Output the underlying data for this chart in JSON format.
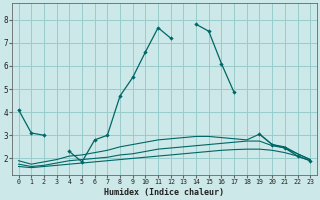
{
  "xlabel": "Humidex (Indice chaleur)",
  "background_color": "#cce8e8",
  "grid_color": "#99cccc",
  "line_color": "#006666",
  "xlim": [
    -0.5,
    23.5
  ],
  "ylim": [
    1.3,
    8.7
  ],
  "xtick_labels": [
    "0",
    "1",
    "2",
    "3",
    "4",
    "5",
    "6",
    "7",
    "8",
    "9",
    "10",
    "11",
    "12",
    "13",
    "14",
    "15",
    "16",
    "17",
    "18",
    "19",
    "20",
    "21",
    "22",
    "23"
  ],
  "ytick_vals": [
    2,
    3,
    4,
    5,
    6,
    7,
    8
  ],
  "line1_x": [
    0,
    1,
    2,
    4,
    5,
    6,
    7,
    8,
    9,
    10,
    11,
    12,
    14,
    15,
    16,
    17,
    19,
    20,
    21,
    22,
    23
  ],
  "line1_y": [
    4.1,
    3.1,
    3.0,
    2.3,
    1.85,
    2.8,
    3.0,
    4.7,
    5.5,
    6.6,
    7.65,
    7.2,
    7.8,
    7.5,
    6.1,
    4.85,
    3.05,
    2.6,
    2.45,
    2.1,
    1.9
  ],
  "line1_gaps": [
    [
      1,
      2
    ],
    [
      2,
      4
    ],
    [
      12,
      14
    ],
    [
      17,
      19
    ]
  ],
  "line2_x": [
    0,
    1,
    2,
    3,
    4,
    5,
    6,
    7,
    8,
    9,
    10,
    11,
    12,
    13,
    14,
    15,
    16,
    17,
    18,
    19,
    20,
    21,
    22,
    23
  ],
  "line2_y": [
    1.65,
    1.6,
    1.65,
    1.7,
    1.75,
    1.8,
    1.85,
    1.9,
    1.95,
    2.0,
    2.05,
    2.1,
    2.15,
    2.2,
    2.25,
    2.3,
    2.35,
    2.38,
    2.4,
    2.4,
    2.35,
    2.25,
    2.1,
    1.9
  ],
  "line3_x": [
    0,
    1,
    2,
    3,
    4,
    5,
    6,
    7,
    8,
    9,
    10,
    11,
    12,
    13,
    14,
    15,
    16,
    17,
    18,
    19,
    20,
    21,
    22,
    23
  ],
  "line3_y": [
    1.75,
    1.65,
    1.7,
    1.8,
    1.9,
    1.95,
    2.0,
    2.05,
    2.15,
    2.2,
    2.3,
    2.4,
    2.45,
    2.5,
    2.55,
    2.6,
    2.65,
    2.7,
    2.75,
    2.75,
    2.55,
    2.45,
    2.2,
    1.95
  ],
  "line4_x": [
    0,
    1,
    2,
    3,
    4,
    5,
    6,
    7,
    8,
    9,
    10,
    11,
    12,
    13,
    14,
    15,
    16,
    17,
    18,
    19,
    20,
    21,
    22,
    23
  ],
  "line4_y": [
    1.9,
    1.75,
    1.85,
    1.95,
    2.1,
    2.15,
    2.25,
    2.35,
    2.5,
    2.6,
    2.7,
    2.8,
    2.85,
    2.9,
    2.95,
    2.95,
    2.9,
    2.85,
    2.8,
    3.05,
    2.6,
    2.5,
    2.2,
    1.95
  ]
}
